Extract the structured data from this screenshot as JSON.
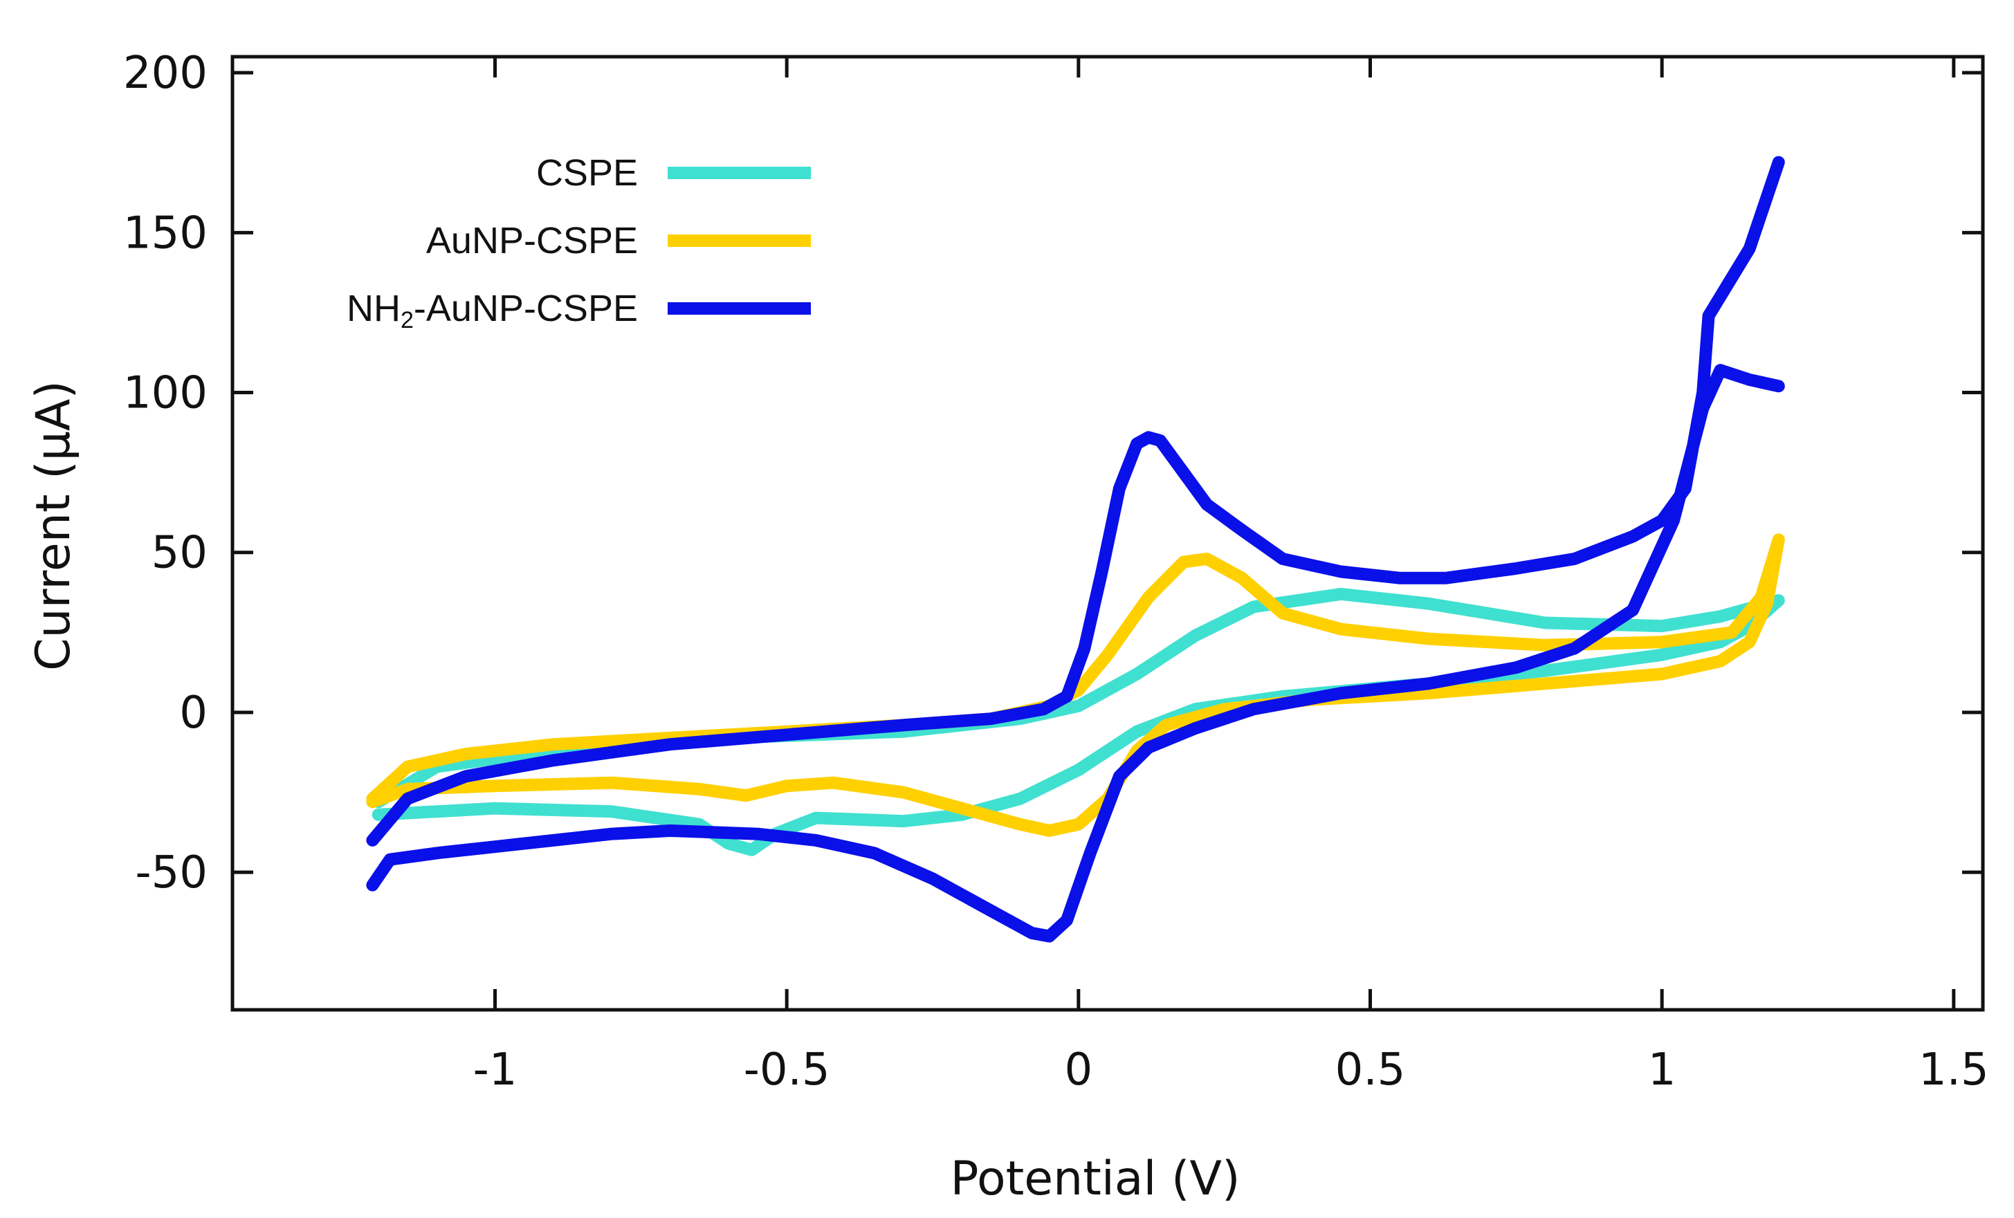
{
  "chart_data": {
    "type": "line",
    "title": "",
    "xlabel": "Potential (V)",
    "ylabel": "Current (µA)",
    "xlim": [
      -1.45,
      1.55
    ],
    "ylim": [
      -93,
      205
    ],
    "xticks": [
      -1,
      -0.5,
      0,
      0.5,
      1,
      1.5
    ],
    "xtick_labels": [
      "-1",
      "-0.5",
      "0",
      "0.5",
      "1",
      "1.5"
    ],
    "yticks": [
      -50,
      0,
      50,
      100,
      150,
      200
    ],
    "ytick_labels": [
      "-50",
      "0",
      "50",
      "100",
      "150",
      "200"
    ],
    "legend_position": "top-left",
    "series": [
      {
        "name": "CSPE",
        "label_main": "CSPE",
        "label_sub": "",
        "label_rest": "",
        "color": "#40E0D0",
        "points": [
          [
            -1.2,
            -32
          ],
          [
            -1.0,
            -30
          ],
          [
            -0.8,
            -31
          ],
          [
            -0.65,
            -35
          ],
          [
            -0.6,
            -41
          ],
          [
            -0.56,
            -43
          ],
          [
            -0.52,
            -38
          ],
          [
            -0.45,
            -33
          ],
          [
            -0.3,
            -34
          ],
          [
            -0.2,
            -32
          ],
          [
            -0.1,
            -27
          ],
          [
            0.0,
            -18
          ],
          [
            0.1,
            -6
          ],
          [
            0.2,
            1
          ],
          [
            0.35,
            5
          ],
          [
            0.6,
            9
          ],
          [
            0.8,
            13
          ],
          [
            1.0,
            18
          ],
          [
            1.1,
            22
          ],
          [
            1.15,
            27
          ],
          [
            1.2,
            35
          ],
          [
            1.1,
            30
          ],
          [
            1.0,
            27
          ],
          [
            0.8,
            28
          ],
          [
            0.6,
            34
          ],
          [
            0.45,
            37
          ],
          [
            0.3,
            33
          ],
          [
            0.2,
            24
          ],
          [
            0.1,
            12
          ],
          [
            0.0,
            2
          ],
          [
            -0.1,
            -2
          ],
          [
            -0.3,
            -6
          ],
          [
            -0.6,
            -8
          ],
          [
            -0.9,
            -12
          ],
          [
            -1.1,
            -17
          ],
          [
            -1.2,
            -28
          ]
        ]
      },
      {
        "name": "AuNP-CSPE",
        "label_main": "AuNP-CSPE",
        "label_sub": "",
        "label_rest": "",
        "color": "#FFD000",
        "points": [
          [
            -1.21,
            -28
          ],
          [
            -1.15,
            -24
          ],
          [
            -1.0,
            -23
          ],
          [
            -0.8,
            -22
          ],
          [
            -0.65,
            -24
          ],
          [
            -0.57,
            -26
          ],
          [
            -0.5,
            -23
          ],
          [
            -0.42,
            -22
          ],
          [
            -0.3,
            -25
          ],
          [
            -0.2,
            -30
          ],
          [
            -0.1,
            -35
          ],
          [
            -0.05,
            -37
          ],
          [
            0.0,
            -35
          ],
          [
            0.05,
            -27
          ],
          [
            0.1,
            -12
          ],
          [
            0.15,
            -4
          ],
          [
            0.25,
            1
          ],
          [
            0.4,
            4
          ],
          [
            0.6,
            6
          ],
          [
            0.8,
            9
          ],
          [
            1.0,
            12
          ],
          [
            1.1,
            16
          ],
          [
            1.15,
            22
          ],
          [
            1.18,
            34
          ],
          [
            1.2,
            54
          ],
          [
            1.17,
            36
          ],
          [
            1.12,
            25
          ],
          [
            1.0,
            22
          ],
          [
            0.8,
            21
          ],
          [
            0.6,
            23
          ],
          [
            0.45,
            26
          ],
          [
            0.35,
            31
          ],
          [
            0.28,
            42
          ],
          [
            0.22,
            48
          ],
          [
            0.18,
            47
          ],
          [
            0.12,
            36
          ],
          [
            0.05,
            18
          ],
          [
            0.0,
            7
          ],
          [
            -0.05,
            2
          ],
          [
            -0.15,
            -2
          ],
          [
            -0.3,
            -4
          ],
          [
            -0.5,
            -6
          ],
          [
            -0.7,
            -8
          ],
          [
            -0.9,
            -10
          ],
          [
            -1.05,
            -13
          ],
          [
            -1.15,
            -17
          ],
          [
            -1.21,
            -27
          ]
        ]
      },
      {
        "name": "NH2-AuNP-CSPE",
        "label_main": "NH",
        "label_sub": "2",
        "label_rest": "-AuNP-CSPE",
        "color": "#0A10E8",
        "points": [
          [
            -1.21,
            -54
          ],
          [
            -1.18,
            -46
          ],
          [
            -1.1,
            -44
          ],
          [
            -1.0,
            -42
          ],
          [
            -0.8,
            -38
          ],
          [
            -0.7,
            -37
          ],
          [
            -0.55,
            -38
          ],
          [
            -0.45,
            -40
          ],
          [
            -0.35,
            -44
          ],
          [
            -0.25,
            -52
          ],
          [
            -0.15,
            -62
          ],
          [
            -0.08,
            -69
          ],
          [
            -0.05,
            -70
          ],
          [
            -0.02,
            -65
          ],
          [
            0.02,
            -44
          ],
          [
            0.07,
            -20
          ],
          [
            0.12,
            -11
          ],
          [
            0.2,
            -5
          ],
          [
            0.3,
            1
          ],
          [
            0.45,
            6
          ],
          [
            0.6,
            9
          ],
          [
            0.75,
            14
          ],
          [
            0.85,
            20
          ],
          [
            0.95,
            32
          ],
          [
            1.02,
            60
          ],
          [
            1.07,
            95
          ],
          [
            1.1,
            107
          ],
          [
            1.15,
            104
          ],
          [
            1.2,
            102
          ],
          null,
          [
            1.2,
            172
          ],
          [
            1.15,
            145
          ],
          [
            1.1,
            130
          ],
          [
            1.08,
            124
          ],
          [
            1.07,
            100
          ],
          [
            1.04,
            70
          ],
          [
            1.0,
            60
          ],
          [
            0.95,
            55
          ],
          [
            0.85,
            48
          ],
          [
            0.75,
            45
          ],
          [
            0.63,
            42
          ],
          [
            0.55,
            42
          ],
          [
            0.45,
            44
          ],
          [
            0.35,
            48
          ],
          [
            0.28,
            57
          ],
          [
            0.22,
            65
          ],
          [
            0.18,
            75
          ],
          [
            0.14,
            85
          ],
          [
            0.12,
            86
          ],
          [
            0.1,
            84
          ],
          [
            0.07,
            70
          ],
          [
            0.04,
            44
          ],
          [
            0.01,
            20
          ],
          [
            -0.02,
            5
          ],
          [
            -0.06,
            1
          ],
          [
            -0.15,
            -2
          ],
          [
            -0.3,
            -4
          ],
          [
            -0.5,
            -7
          ],
          [
            -0.7,
            -10
          ],
          [
            -0.9,
            -15
          ],
          [
            -1.05,
            -20
          ],
          [
            -1.15,
            -27
          ],
          [
            -1.21,
            -40
          ]
        ]
      }
    ]
  }
}
